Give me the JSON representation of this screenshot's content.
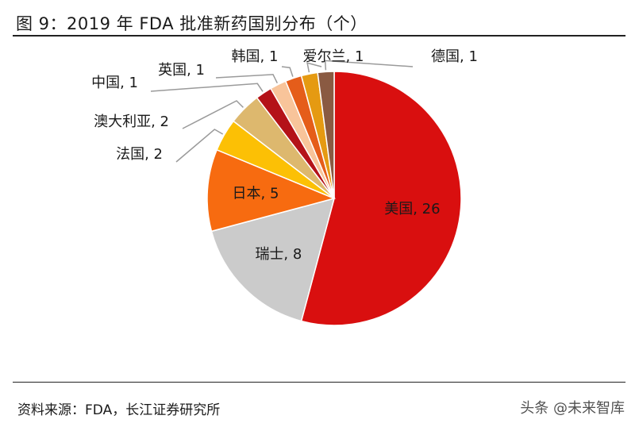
{
  "title": "图 9：2019 年 FDA 批准新药国别分布（个）",
  "source": "资料来源：FDA，长江证券研究所",
  "watermark": {
    "text": "头条 @未来智库",
    "icon": "at-icon"
  },
  "chart_data": {
    "type": "pie",
    "title": "图 9：2019 年 FDA 批准新药国别分布（个）",
    "start": "12 o'clock",
    "direction": "clockwise",
    "slices": [
      {
        "name": "美国",
        "value": 26,
        "color": "#d90f0f",
        "label": "美国, 26",
        "label_position": "inside"
      },
      {
        "name": "瑞士",
        "value": 8,
        "color": "#cbcbcb",
        "label": "瑞士, 8",
        "label_position": "inside"
      },
      {
        "name": "日本",
        "value": 5,
        "color": "#f76b10",
        "label": "日本, 5",
        "label_position": "inside"
      },
      {
        "name": "法国",
        "value": 2,
        "color": "#fcc005",
        "label": "法国, 2",
        "label_position": "outside"
      },
      {
        "name": "澳大利亚",
        "value": 2,
        "color": "#ddb86e",
        "label": "澳大利亚, 2",
        "label_position": "outside"
      },
      {
        "name": "中国",
        "value": 1,
        "color": "#b41218",
        "label": "中国, 1",
        "label_position": "outside"
      },
      {
        "name": "英国",
        "value": 1,
        "color": "#f8c49a",
        "label": "英国, 1",
        "label_position": "outside"
      },
      {
        "name": "韩国",
        "value": 1,
        "color": "#e55d1a",
        "label": "韩国, 1",
        "label_position": "outside"
      },
      {
        "name": "爱尔兰",
        "value": 1,
        "color": "#e59a12",
        "label": "爱尔兰, 1",
        "label_position": "outside"
      },
      {
        "name": "德国",
        "value": 1,
        "color": "#8a5a42",
        "label": "德国, 1",
        "label_position": "outside"
      }
    ]
  }
}
